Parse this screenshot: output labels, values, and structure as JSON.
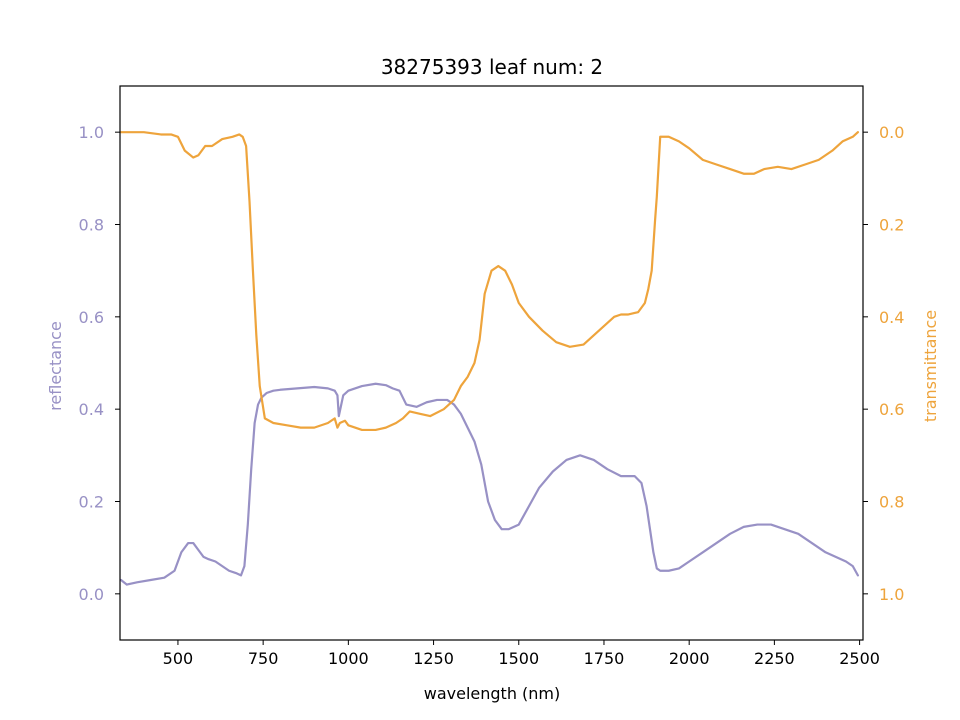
{
  "chart_data": {
    "type": "line",
    "title": "38275393 leaf num: 2",
    "xlabel": "wavelength (nm)",
    "ylabel_left": "reflectance",
    "ylabel_right": "transmittance",
    "xlim": [
      330,
      2510
    ],
    "ylim_left": [
      -0.1,
      1.1
    ],
    "ylim_right": [
      1.1,
      -0.1
    ],
    "right_axis_inverted": true,
    "grid": false,
    "x_ticks": [
      500,
      750,
      1000,
      1250,
      1500,
      1750,
      2000,
      2250,
      2500
    ],
    "x_tick_labels": [
      "500",
      "750",
      "1000",
      "1250",
      "1500",
      "1750",
      "2000",
      "2250",
      "2500"
    ],
    "y_left_ticks": [
      0.0,
      0.2,
      0.4,
      0.6,
      0.8,
      1.0
    ],
    "y_left_tick_labels": [
      "0.0",
      "0.2",
      "0.4",
      "0.6",
      "0.8",
      "1.0"
    ],
    "y_right_ticks": [
      0.0,
      0.2,
      0.4,
      0.6,
      0.8,
      1.0
    ],
    "y_right_tick_labels": [
      "0.0",
      "0.2",
      "0.4",
      "0.6",
      "0.8",
      "1.0"
    ],
    "colors": {
      "reflectance": "#9891c5",
      "transmittance": "#eea43c",
      "axes": "#000000"
    },
    "series": [
      {
        "axis": "left",
        "x": [
          333,
          350,
          380,
          420,
          460,
          490,
          510,
          530,
          545,
          560,
          575,
          590,
          610,
          630,
          650,
          670,
          685,
          695,
          705,
          715,
          725,
          735,
          745,
          760,
          780,
          800,
          850,
          900,
          940,
          960,
          968,
          972,
          985,
          1000,
          1040,
          1080,
          1110,
          1130,
          1150,
          1170,
          1200,
          1230,
          1260,
          1290,
          1310,
          1330,
          1350,
          1370,
          1390,
          1410,
          1430,
          1450,
          1470,
          1500,
          1530,
          1560,
          1600,
          1640,
          1680,
          1720,
          1760,
          1800,
          1840,
          1860,
          1875,
          1885,
          1895,
          1905,
          1915,
          1940,
          1970,
          2000,
          2040,
          2080,
          2120,
          2160,
          2200,
          2240,
          2280,
          2320,
          2360,
          2400,
          2430,
          2460,
          2480,
          2495
        ],
        "y": [
          0.03,
          0.02,
          0.025,
          0.03,
          0.035,
          0.05,
          0.09,
          0.11,
          0.11,
          0.095,
          0.08,
          0.075,
          0.07,
          0.06,
          0.05,
          0.045,
          0.04,
          0.06,
          0.15,
          0.27,
          0.37,
          0.41,
          0.425,
          0.435,
          0.44,
          0.442,
          0.445,
          0.448,
          0.445,
          0.44,
          0.43,
          0.385,
          0.43,
          0.44,
          0.45,
          0.455,
          0.452,
          0.445,
          0.44,
          0.41,
          0.405,
          0.415,
          0.42,
          0.42,
          0.41,
          0.39,
          0.36,
          0.33,
          0.28,
          0.2,
          0.16,
          0.14,
          0.14,
          0.15,
          0.19,
          0.23,
          0.265,
          0.29,
          0.3,
          0.29,
          0.27,
          0.255,
          0.255,
          0.24,
          0.19,
          0.14,
          0.09,
          0.055,
          0.05,
          0.05,
          0.055,
          0.07,
          0.09,
          0.11,
          0.13,
          0.145,
          0.15,
          0.15,
          0.14,
          0.13,
          0.11,
          0.09,
          0.08,
          0.07,
          0.06,
          0.04
        ]
      },
      {
        "axis": "right",
        "x": [
          333,
          360,
          400,
          450,
          480,
          500,
          520,
          545,
          560,
          580,
          600,
          630,
          660,
          680,
          690,
          700,
          710,
          720,
          730,
          740,
          755,
          780,
          820,
          860,
          900,
          940,
          960,
          968,
          975,
          990,
          1000,
          1040,
          1080,
          1110,
          1140,
          1160,
          1180,
          1210,
          1240,
          1280,
          1310,
          1330,
          1350,
          1370,
          1385,
          1400,
          1420,
          1440,
          1460,
          1480,
          1500,
          1530,
          1570,
          1610,
          1650,
          1690,
          1720,
          1750,
          1780,
          1800,
          1820,
          1850,
          1870,
          1880,
          1890,
          1900,
          1905,
          1915,
          1940,
          1970,
          2000,
          2040,
          2080,
          2120,
          2160,
          2190,
          2220,
          2260,
          2300,
          2340,
          2380,
          2420,
          2450,
          2480,
          2495
        ],
        "y": [
          0.0,
          0.0,
          0.0,
          0.005,
          0.005,
          0.01,
          0.04,
          0.055,
          0.05,
          0.03,
          0.03,
          0.015,
          0.01,
          0.005,
          0.01,
          0.03,
          0.15,
          0.3,
          0.44,
          0.55,
          0.62,
          0.63,
          0.635,
          0.64,
          0.64,
          0.63,
          0.62,
          0.64,
          0.63,
          0.625,
          0.635,
          0.645,
          0.645,
          0.64,
          0.63,
          0.62,
          0.605,
          0.61,
          0.615,
          0.6,
          0.58,
          0.55,
          0.53,
          0.5,
          0.45,
          0.35,
          0.3,
          0.29,
          0.3,
          0.33,
          0.37,
          0.4,
          0.43,
          0.455,
          0.465,
          0.46,
          0.44,
          0.42,
          0.4,
          0.395,
          0.395,
          0.39,
          0.37,
          0.34,
          0.3,
          0.19,
          0.14,
          0.01,
          0.01,
          0.02,
          0.035,
          0.06,
          0.07,
          0.08,
          0.09,
          0.09,
          0.08,
          0.075,
          0.08,
          0.07,
          0.06,
          0.04,
          0.02,
          0.01,
          0.0
        ]
      }
    ]
  }
}
